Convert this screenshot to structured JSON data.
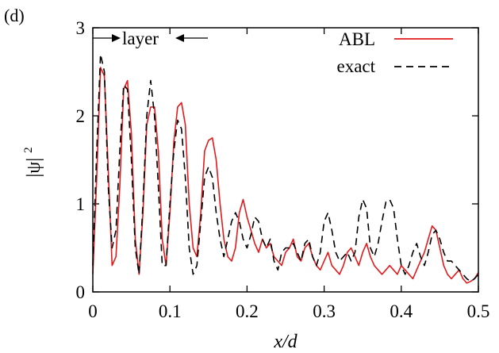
{
  "chart_data": {
    "type": "line",
    "panel_label": "(d)",
    "xlabel": "x/d",
    "ylabel": "|ψ|",
    "ylabel_superscript": "2",
    "xlim": [
      0,
      0.5
    ],
    "ylim": [
      0,
      3
    ],
    "x_ticks": [
      0,
      0.1,
      0.2,
      0.3,
      0.4,
      0.5
    ],
    "x_tick_labels": [
      "0",
      "0.1",
      "0.2",
      "0.3",
      "0.4",
      "0.5"
    ],
    "y_ticks": [
      0,
      1,
      2,
      3
    ],
    "y_tick_labels": [
      "0",
      "1",
      "2",
      "3"
    ],
    "grid": false,
    "legend_position": "top-right",
    "annotation": {
      "text": "layer",
      "y": 2.86,
      "x_start": 0,
      "x_end": 0.12
    },
    "series": [
      {
        "name": "ABL",
        "color": "#e31a1c",
        "style": "solid",
        "x": [
          0,
          0.005,
          0.01,
          0.015,
          0.02,
          0.025,
          0.03,
          0.035,
          0.04,
          0.045,
          0.05,
          0.055,
          0.06,
          0.065,
          0.07,
          0.075,
          0.08,
          0.085,
          0.09,
          0.095,
          0.1,
          0.105,
          0.11,
          0.115,
          0.12,
          0.125,
          0.13,
          0.135,
          0.14,
          0.145,
          0.15,
          0.155,
          0.16,
          0.165,
          0.17,
          0.175,
          0.18,
          0.185,
          0.19,
          0.195,
          0.2,
          0.205,
          0.21,
          0.215,
          0.22,
          0.225,
          0.23,
          0.235,
          0.24,
          0.245,
          0.25,
          0.255,
          0.26,
          0.265,
          0.27,
          0.275,
          0.28,
          0.285,
          0.29,
          0.295,
          0.3,
          0.305,
          0.31,
          0.315,
          0.32,
          0.325,
          0.33,
          0.335,
          0.34,
          0.345,
          0.35,
          0.355,
          0.36,
          0.365,
          0.37,
          0.375,
          0.38,
          0.385,
          0.39,
          0.395,
          0.4,
          0.405,
          0.41,
          0.415,
          0.42,
          0.425,
          0.43,
          0.435,
          0.44,
          0.445,
          0.45,
          0.455,
          0.46,
          0.465,
          0.47,
          0.475,
          0.48,
          0.485,
          0.49,
          0.495,
          0.5
        ],
        "y": [
          0.2,
          1.3,
          2.55,
          2.45,
          1.4,
          0.3,
          0.4,
          1.2,
          2.3,
          2.4,
          1.8,
          0.6,
          0.2,
          0.9,
          1.9,
          2.1,
          2.1,
          1.6,
          0.6,
          0.3,
          0.9,
          1.7,
          2.1,
          2.15,
          1.9,
          1.0,
          0.5,
          0.4,
          0.9,
          1.6,
          1.72,
          1.75,
          1.5,
          1.0,
          0.6,
          0.4,
          0.35,
          0.5,
          0.9,
          1.05,
          0.85,
          0.7,
          0.55,
          0.45,
          0.6,
          0.5,
          0.55,
          0.4,
          0.35,
          0.3,
          0.45,
          0.5,
          0.6,
          0.4,
          0.35,
          0.5,
          0.55,
          0.4,
          0.3,
          0.25,
          0.35,
          0.45,
          0.3,
          0.25,
          0.2,
          0.3,
          0.45,
          0.5,
          0.4,
          0.3,
          0.45,
          0.55,
          0.4,
          0.3,
          0.25,
          0.2,
          0.25,
          0.3,
          0.25,
          0.2,
          0.3,
          0.25,
          0.2,
          0.15,
          0.25,
          0.35,
          0.45,
          0.6,
          0.75,
          0.7,
          0.5,
          0.3,
          0.2,
          0.15,
          0.2,
          0.25,
          0.15,
          0.1,
          0.12,
          0.15,
          0.22
        ]
      },
      {
        "name": "exact",
        "color": "#000000",
        "style": "dashed",
        "x": [
          0,
          0.005,
          0.01,
          0.015,
          0.02,
          0.025,
          0.03,
          0.035,
          0.04,
          0.045,
          0.05,
          0.055,
          0.06,
          0.065,
          0.07,
          0.075,
          0.08,
          0.085,
          0.09,
          0.095,
          0.1,
          0.105,
          0.11,
          0.115,
          0.12,
          0.125,
          0.13,
          0.135,
          0.14,
          0.145,
          0.15,
          0.155,
          0.16,
          0.165,
          0.17,
          0.175,
          0.18,
          0.185,
          0.19,
          0.195,
          0.2,
          0.205,
          0.21,
          0.215,
          0.22,
          0.225,
          0.23,
          0.235,
          0.24,
          0.245,
          0.25,
          0.255,
          0.26,
          0.265,
          0.27,
          0.275,
          0.28,
          0.285,
          0.29,
          0.295,
          0.3,
          0.305,
          0.31,
          0.315,
          0.32,
          0.325,
          0.33,
          0.335,
          0.34,
          0.345,
          0.35,
          0.355,
          0.36,
          0.365,
          0.37,
          0.375,
          0.38,
          0.385,
          0.39,
          0.395,
          0.4,
          0.405,
          0.41,
          0.415,
          0.42,
          0.425,
          0.43,
          0.435,
          0.44,
          0.445,
          0.45,
          0.455,
          0.46,
          0.465,
          0.47,
          0.475,
          0.48,
          0.485,
          0.49,
          0.495,
          0.5
        ],
        "y": [
          0.3,
          1.6,
          2.7,
          2.5,
          1.2,
          0.5,
          0.7,
          1.6,
          2.35,
          2.3,
          1.5,
          0.5,
          0.2,
          1.0,
          2.0,
          2.4,
          2.0,
          1.2,
          0.3,
          0.3,
          1.0,
          1.6,
          1.95,
          1.85,
          1.3,
          0.5,
          0.2,
          0.3,
          0.8,
          1.3,
          1.42,
          1.3,
          0.9,
          0.6,
          0.4,
          0.6,
          0.8,
          0.9,
          0.8,
          0.6,
          0.5,
          0.65,
          0.85,
          0.8,
          0.6,
          0.5,
          0.6,
          0.35,
          0.25,
          0.45,
          0.5,
          0.5,
          0.55,
          0.45,
          0.35,
          0.55,
          0.6,
          0.4,
          0.3,
          0.45,
          0.8,
          0.9,
          0.7,
          0.45,
          0.35,
          0.4,
          0.45,
          0.35,
          0.45,
          0.85,
          1.05,
          0.95,
          0.5,
          0.4,
          0.55,
          0.8,
          1.02,
          1.05,
          0.95,
          0.6,
          0.3,
          0.2,
          0.3,
          0.45,
          0.55,
          0.4,
          0.3,
          0.45,
          0.65,
          0.7,
          0.6,
          0.45,
          0.35,
          0.35,
          0.3,
          0.25,
          0.2,
          0.15,
          0.12,
          0.15,
          0.2
        ]
      }
    ]
  }
}
